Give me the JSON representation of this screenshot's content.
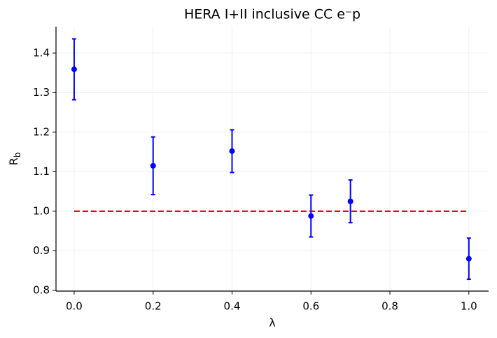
{
  "chart_data": {
    "type": "errorbar",
    "title": "HERA I+II inclusive CC e⁻p",
    "xlabel": "λ",
    "ylabel": {
      "text": "R",
      "subscript": "b"
    },
    "x": [
      0.0,
      0.2,
      0.4,
      0.6,
      0.7,
      1.0
    ],
    "series": [
      {
        "color": "#0000ff",
        "values": [
          1.359,
          1.115,
          1.152,
          0.988,
          1.025,
          0.88
        ],
        "errors": [
          0.077,
          0.073,
          0.054,
          0.053,
          0.054,
          0.052
        ]
      }
    ],
    "reference_line": {
      "y": 1.0,
      "x": [
        0,
        1
      ],
      "color": "#ff0000"
    },
    "xlim": [
      -0.046,
      1.05
    ],
    "ylim": [
      0.798,
      1.467
    ],
    "xticks": [
      {
        "value": 0,
        "label": "0.0"
      },
      0.2,
      0.4,
      0.6,
      0.8,
      {
        "value": 1,
        "label": "1.0"
      }
    ],
    "yticks": [
      0.8,
      0.9,
      {
        "value": 1,
        "label": "1.0"
      },
      1.1,
      1.2,
      1.3,
      1.4
    ],
    "grid": true
  }
}
